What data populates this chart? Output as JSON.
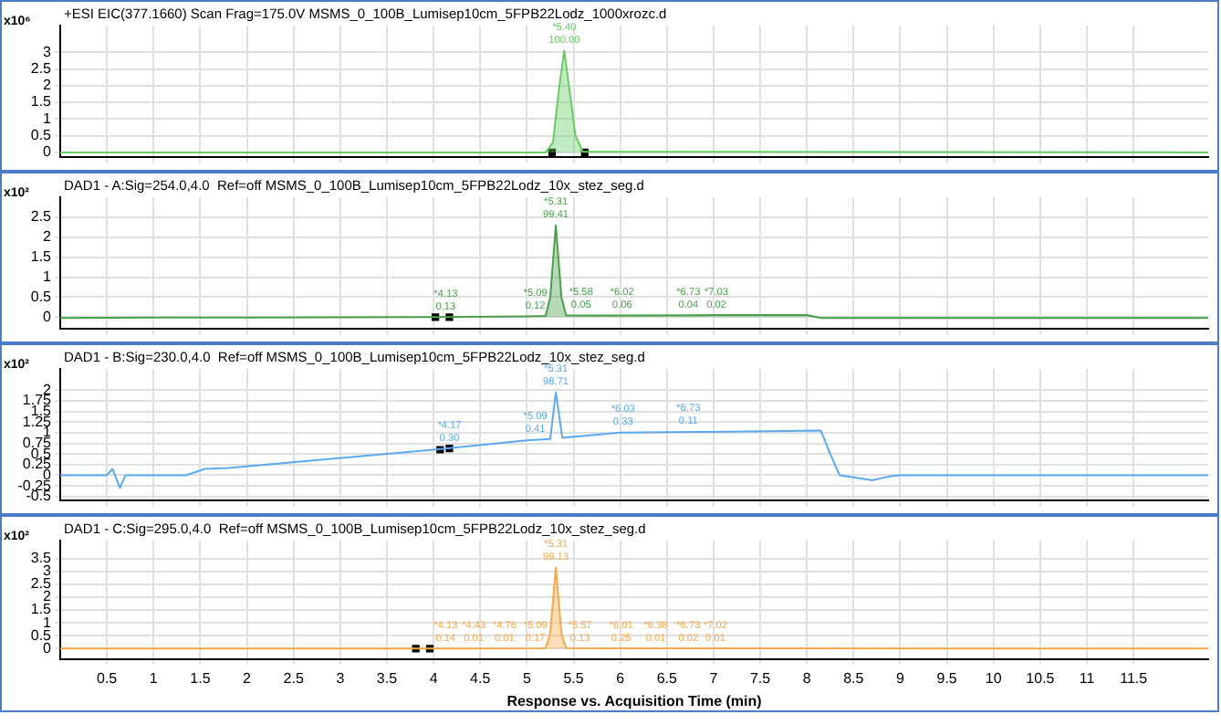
{
  "chart_data": [
    {
      "type": "area",
      "title": "+ESI EIC(377.1660) Scan Frag=175.0V MSMS_0_100B_Lumisep10cm_5FPB22Lodz_1000xrozc.d",
      "ylabel": "x10⁶",
      "xlim": [
        0,
        12.3
      ],
      "xticks": [
        0.5,
        1,
        1.5,
        2,
        2.5,
        3,
        3.5,
        4,
        4.5,
        5,
        5.5,
        6,
        6.5,
        7,
        7.5,
        8,
        8.5,
        9,
        9.5,
        10,
        10.5,
        11,
        11.5
      ],
      "ylim": [
        -0.15,
        3.8
      ],
      "yticks": [
        0,
        0.5,
        1,
        1.5,
        2,
        2.5,
        3
      ],
      "grid": true,
      "tick_labels": "y",
      "series": [
        {
          "color": "#66cc66",
          "x": [
            0,
            5.2,
            5.28,
            5.34,
            5.4,
            5.46,
            5.52,
            5.6,
            12.3
          ],
          "values": [
            0,
            0,
            0.3,
            1.8,
            3.05,
            1.8,
            0.5,
            0.02,
            0
          ]
        },
        {
          "type": "scatter",
          "marker": "square",
          "color": "#000000",
          "x": [
            5.27,
            5.62
          ],
          "values": [
            0,
            0
          ]
        }
      ],
      "annotations": [
        {
          "text": "*5.40\n100.00",
          "x": 5.4,
          "y": 3.05
        }
      ]
    },
    {
      "type": "area",
      "title": "DAD1 - A:Sig=254.0,4.0  Ref=off MSMS_0_100B_Lumisep10cm_5FPB22Lodz_10x_stez_seg.d",
      "ylabel": "x10²",
      "xlim": [
        0,
        12.3
      ],
      "xticks": [
        0.5,
        1,
        1.5,
        2,
        2.5,
        3,
        3.5,
        4,
        4.5,
        5,
        5.5,
        6,
        6.5,
        7,
        7.5,
        8,
        8.5,
        9,
        9.5,
        10,
        10.5,
        11,
        11.5
      ],
      "ylim": [
        -0.3,
        3
      ],
      "yticks": [
        0,
        0.5,
        1,
        1.5,
        2,
        2.5
      ],
      "grid": true,
      "tick_labels": "y",
      "series": [
        {
          "color": "#4aa04a",
          "x": [
            0,
            1,
            2,
            4,
            5,
            5.2,
            5.25,
            5.31,
            5.37,
            5.42,
            6,
            7,
            8,
            8.15,
            12.3
          ],
          "values": [
            -0.02,
            -0.01,
            -0.01,
            0,
            0.02,
            0.03,
            0.5,
            2.3,
            0.5,
            0.04,
            0.04,
            0.05,
            0.05,
            -0.02,
            -0.02
          ]
        },
        {
          "type": "scatter",
          "marker": "square",
          "color": "#000000",
          "x": [
            4.02,
            4.17
          ],
          "values": [
            0,
            0
          ]
        }
      ],
      "annotations": [
        {
          "text": "*4.13\n0.13",
          "x": 4.13,
          "y": 0
        },
        {
          "text": "*5.09\n0.12",
          "x": 5.09,
          "y": 0.02
        },
        {
          "text": "*5.31\n99.41",
          "x": 5.31,
          "y": 2.3
        },
        {
          "text": "*5.58\n0.05",
          "x": 5.58,
          "y": 0.04
        },
        {
          "text": "*6.02\n0.06",
          "x": 6.02,
          "y": 0.04
        },
        {
          "text": "*6.73\n0.04",
          "x": 6.73,
          "y": 0.05
        },
        {
          "text": "*7.03\n0.02",
          "x": 7.03,
          "y": 0.05
        }
      ]
    },
    {
      "type": "line",
      "title": "DAD1 - B:Sig=230.0,4.0  Ref=off MSMS_0_100B_Lumisep10cm_5FPB22Lodz_10x_stez_seg.d",
      "ylabel": "x10²",
      "xlim": [
        0,
        12.3
      ],
      "xticks": [
        0.5,
        1,
        1.5,
        2,
        2.5,
        3,
        3.5,
        4,
        4.5,
        5,
        5.5,
        6,
        6.5,
        7,
        7.5,
        8,
        8.5,
        9,
        9.5,
        10,
        10.5,
        11,
        11.5
      ],
      "ylim": [
        -0.6,
        2.5
      ],
      "yticks": [
        -0.5,
        -0.25,
        0,
        0.25,
        0.5,
        0.75,
        1,
        1.25,
        1.5,
        1.75,
        2
      ],
      "grid": true,
      "tick_labels": "y",
      "series": [
        {
          "color": "#5aaaf0",
          "x": [
            0,
            0.5,
            0.56,
            0.64,
            0.7,
            1.35,
            1.55,
            1.8,
            4,
            5,
            5.25,
            5.31,
            5.38,
            6,
            7,
            8.15,
            8.25,
            8.35,
            8.5,
            8.7,
            8.9,
            9,
            12.3
          ],
          "values": [
            0,
            0,
            0.15,
            -0.3,
            0,
            0,
            0.15,
            0.17,
            0.6,
            0.82,
            0.85,
            1.95,
            0.88,
            1,
            1.02,
            1.05,
            0.5,
            0,
            -0.05,
            -0.12,
            -0.02,
            0,
            0
          ]
        },
        {
          "type": "scatter",
          "marker": "square",
          "color": "#000000",
          "x": [
            4.07,
            4.17
          ],
          "values": [
            0.6,
            0.63
          ]
        }
      ],
      "annotations": [
        {
          "text": "*4.17\n0.30",
          "x": 4.17,
          "y": 0.63
        },
        {
          "text": "*5.09\n0.41",
          "x": 5.09,
          "y": 0.83
        },
        {
          "text": "*5.31\n98.71",
          "x": 5.31,
          "y": 1.95
        },
        {
          "text": "*6.03\n0.33",
          "x": 6.03,
          "y": 1
        },
        {
          "text": "*6.73\n0.11",
          "x": 6.73,
          "y": 1.02
        }
      ]
    },
    {
      "type": "area",
      "title": "DAD1 - C:Sig=295.0,4.0  Ref=off MSMS_0_100B_Lumisep10cm_5FPB22Lodz_10x_stez_seg.d",
      "ylabel": "x10²",
      "xlabel": "Response vs. Acquisition Time (min)",
      "xlim": [
        0,
        12.3
      ],
      "xticks": [
        0.5,
        1,
        1.5,
        2,
        2.5,
        3,
        3.5,
        4,
        4.5,
        5,
        5.5,
        6,
        6.5,
        7,
        7.5,
        8,
        8.5,
        9,
        9.5,
        10,
        10.5,
        11,
        11.5
      ],
      "ylim": [
        -0.4,
        4.2
      ],
      "yticks": [
        0,
        0.5,
        1,
        1.5,
        2,
        2.5,
        3,
        3.5
      ],
      "grid": true,
      "series": [
        {
          "color": "#f5a94a",
          "x": [
            0,
            4,
            5.2,
            5.25,
            5.31,
            5.37,
            5.42,
            6,
            8,
            12.3
          ],
          "values": [
            0,
            0,
            0.01,
            0.6,
            3.15,
            0.6,
            0.02,
            0.01,
            0.01,
            0
          ]
        },
        {
          "type": "scatter",
          "marker": "square",
          "color": "#000000",
          "x": [
            3.81,
            3.96
          ],
          "values": [
            0,
            0
          ]
        }
      ],
      "annotations": [
        {
          "text": "*4.13\n0.14",
          "x": 4.13,
          "y": 0
        },
        {
          "text": "*4.43\n0.01",
          "x": 4.43,
          "y": 0
        },
        {
          "text": "*4.76\n0.01",
          "x": 4.76,
          "y": 0
        },
        {
          "text": "*5.09\n0.17",
          "x": 5.09,
          "y": 0.01
        },
        {
          "text": "*5.31\n99.13",
          "x": 5.31,
          "y": 3.15
        },
        {
          "text": "*5.57\n0.13",
          "x": 5.57,
          "y": 0.01
        },
        {
          "text": "*6.01\n0.25",
          "x": 6.01,
          "y": 0.01
        },
        {
          "text": "*6.38\n0.01",
          "x": 6.38,
          "y": 0.01
        },
        {
          "text": "*6.73\n0.02",
          "x": 6.73,
          "y": 0.01
        },
        {
          "text": "*7.02\n0.01",
          "x": 7.02,
          "y": 0.01
        }
      ]
    }
  ]
}
